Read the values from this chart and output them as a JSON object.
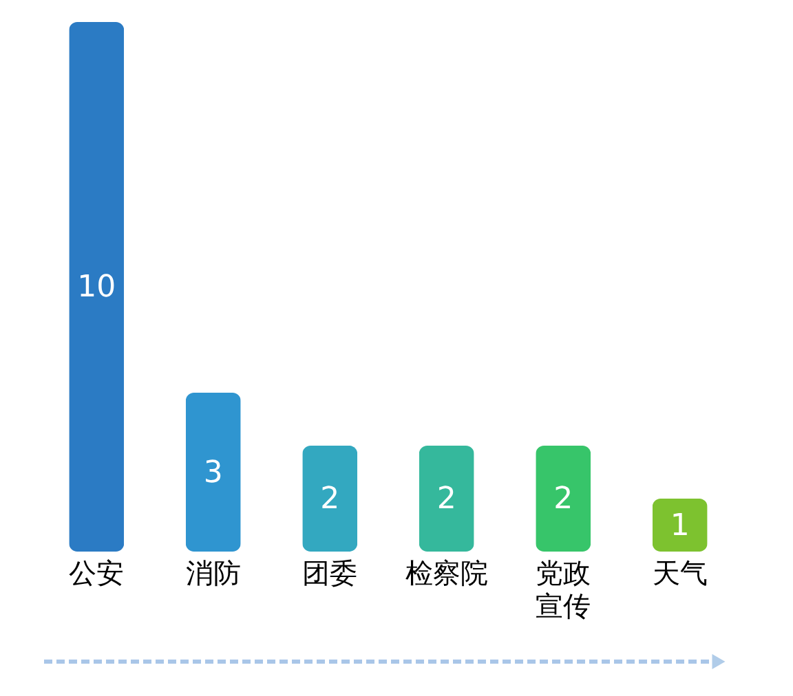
{
  "chart_data": {
    "type": "bar",
    "categories": [
      "公安",
      "消防",
      "团委",
      "检察院",
      "党政宣传",
      "天气"
    ],
    "values": [
      10,
      3,
      2,
      2,
      2,
      1
    ],
    "colors": [
      "#2b7bc4",
      "#2f95d0",
      "#33a8c0",
      "#35b89c",
      "#37c56a",
      "#7dc22f"
    ],
    "data_labels": true,
    "grid": false,
    "legend": false,
    "tick_labels": "x"
  }
}
